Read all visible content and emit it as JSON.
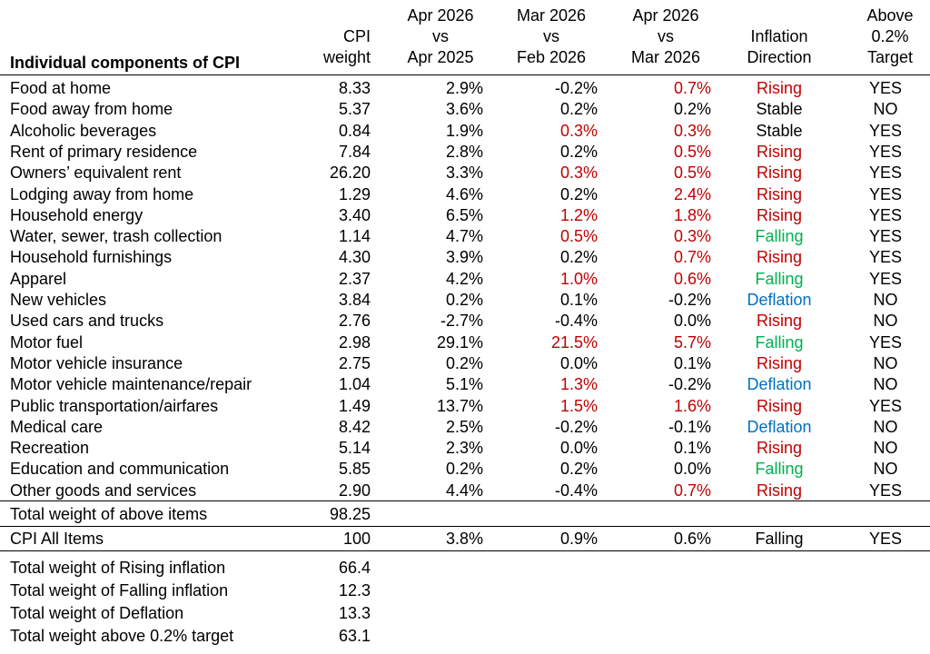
{
  "chart_data": {
    "type": "table",
    "title": "Individual components of CPI",
    "headers": {
      "weight": [
        "CPI",
        "weight"
      ],
      "yoy": [
        "Apr 2026",
        "vs",
        "Apr 2025"
      ],
      "mom_prev": [
        "Mar 2026",
        "vs",
        "Feb 2026"
      ],
      "mom": [
        "Apr 2026",
        "vs",
        "Mar 2026"
      ],
      "direction": [
        "Inflation",
        "Direction"
      ],
      "target": [
        "Above",
        "0.2%",
        "Target"
      ]
    },
    "rows": [
      {
        "name": "Food at home",
        "weight": "8.33",
        "yoy": "2.9%",
        "mom_prev": "-0.2%",
        "mom": "0.7%",
        "direction": "Rising",
        "target": "YES",
        "mom_prev_hl": false,
        "mom_hl": true
      },
      {
        "name": "Food away from home",
        "weight": "5.37",
        "yoy": "3.6%",
        "mom_prev": "0.2%",
        "mom": "0.2%",
        "direction": "Stable",
        "target": "NO",
        "mom_prev_hl": false,
        "mom_hl": false
      },
      {
        "name": "Alcoholic beverages",
        "weight": "0.84",
        "yoy": "1.9%",
        "mom_prev": "0.3%",
        "mom": "0.3%",
        "direction": "Stable",
        "target": "YES",
        "mom_prev_hl": true,
        "mom_hl": true
      },
      {
        "name": "Rent of primary residence",
        "weight": "7.84",
        "yoy": "2.8%",
        "mom_prev": "0.2%",
        "mom": "0.5%",
        "direction": "Rising",
        "target": "YES",
        "mom_prev_hl": false,
        "mom_hl": true
      },
      {
        "name": "Owners’ equivalent rent",
        "weight": "26.20",
        "yoy": "3.3%",
        "mom_prev": "0.3%",
        "mom": "0.5%",
        "direction": "Rising",
        "target": "YES",
        "mom_prev_hl": true,
        "mom_hl": true
      },
      {
        "name": "Lodging away from home",
        "weight": "1.29",
        "yoy": "4.6%",
        "mom_prev": "0.2%",
        "mom": "2.4%",
        "direction": "Rising",
        "target": "YES",
        "mom_prev_hl": false,
        "mom_hl": true
      },
      {
        "name": "Household energy",
        "weight": "3.40",
        "yoy": "6.5%",
        "mom_prev": "1.2%",
        "mom": "1.8%",
        "direction": "Rising",
        "target": "YES",
        "mom_prev_hl": true,
        "mom_hl": true
      },
      {
        "name": "Water, sewer, trash collection",
        "weight": "1.14",
        "yoy": "4.7%",
        "mom_prev": "0.5%",
        "mom": "0.3%",
        "direction": "Falling",
        "target": "YES",
        "mom_prev_hl": true,
        "mom_hl": true
      },
      {
        "name": "Household furnishings",
        "weight": "4.30",
        "yoy": "3.9%",
        "mom_prev": "0.2%",
        "mom": "0.7%",
        "direction": "Rising",
        "target": "YES",
        "mom_prev_hl": false,
        "mom_hl": true
      },
      {
        "name": "Apparel",
        "weight": "2.37",
        "yoy": "4.2%",
        "mom_prev": "1.0%",
        "mom": "0.6%",
        "direction": "Falling",
        "target": "YES",
        "mom_prev_hl": true,
        "mom_hl": true
      },
      {
        "name": "New vehicles",
        "weight": "3.84",
        "yoy": "0.2%",
        "mom_prev": "0.1%",
        "mom": "-0.2%",
        "direction": "Deflation",
        "target": "NO",
        "mom_prev_hl": false,
        "mom_hl": false
      },
      {
        "name": "Used cars and trucks",
        "weight": "2.76",
        "yoy": "-2.7%",
        "mom_prev": "-0.4%",
        "mom": "0.0%",
        "direction": "Rising",
        "target": "NO",
        "mom_prev_hl": false,
        "mom_hl": false
      },
      {
        "name": "Motor fuel",
        "weight": "2.98",
        "yoy": "29.1%",
        "mom_prev": "21.5%",
        "mom": "5.7%",
        "direction": "Falling",
        "target": "YES",
        "mom_prev_hl": true,
        "mom_hl": true
      },
      {
        "name": "Motor vehicle insurance",
        "weight": "2.75",
        "yoy": "0.2%",
        "mom_prev": "0.0%",
        "mom": "0.1%",
        "direction": "Rising",
        "target": "NO",
        "mom_prev_hl": false,
        "mom_hl": false
      },
      {
        "name": "Motor vehicle maintenance/repair",
        "weight": "1.04",
        "yoy": "5.1%",
        "mom_prev": "1.3%",
        "mom": "-0.2%",
        "direction": "Deflation",
        "target": "NO",
        "mom_prev_hl": true,
        "mom_hl": false
      },
      {
        "name": "Public transportation/airfares",
        "weight": "1.49",
        "yoy": "13.7%",
        "mom_prev": "1.5%",
        "mom": "1.6%",
        "direction": "Rising",
        "target": "YES",
        "mom_prev_hl": true,
        "mom_hl": true
      },
      {
        "name": "Medical care",
        "weight": "8.42",
        "yoy": "2.5%",
        "mom_prev": "-0.2%",
        "mom": "-0.1%",
        "direction": "Deflation",
        "target": "NO",
        "mom_prev_hl": false,
        "mom_hl": false
      },
      {
        "name": "Recreation",
        "weight": "5.14",
        "yoy": "2.3%",
        "mom_prev": "0.0%",
        "mom": "0.1%",
        "direction": "Rising",
        "target": "NO",
        "mom_prev_hl": false,
        "mom_hl": false
      },
      {
        "name": "Education and communication",
        "weight": "5.85",
        "yoy": "0.2%",
        "mom_prev": "0.2%",
        "mom": "0.0%",
        "direction": "Falling",
        "target": "NO",
        "mom_prev_hl": false,
        "mom_hl": false
      },
      {
        "name": "Other goods and services",
        "weight": "2.90",
        "yoy": "4.4%",
        "mom_prev": "-0.4%",
        "mom": "0.7%",
        "direction": "Rising",
        "target": "YES",
        "mom_prev_hl": false,
        "mom_hl": true
      }
    ],
    "total_weight": {
      "label": "Total weight of above items",
      "value": "98.25"
    },
    "all_items": {
      "name": "CPI All Items",
      "weight": "100",
      "yoy": "3.8%",
      "mom_prev": "0.9%",
      "mom": "0.6%",
      "direction": "Falling",
      "target": "YES"
    },
    "summary": [
      {
        "label": "Total weight of Rising inflation",
        "value": "66.4"
      },
      {
        "label": "Total weight of Falling inflation",
        "value": "12.3"
      },
      {
        "label": "Total weight of Deflation",
        "value": "13.3"
      },
      {
        "label": "Total weight above 0.2% target",
        "value": "63.1"
      }
    ],
    "colors": {
      "highlight": "#c00000",
      "Rising": "#c00000",
      "Falling": "#00b050",
      "Deflation": "#0070c0",
      "Stable": "#000000",
      "default": "#000000"
    }
  }
}
